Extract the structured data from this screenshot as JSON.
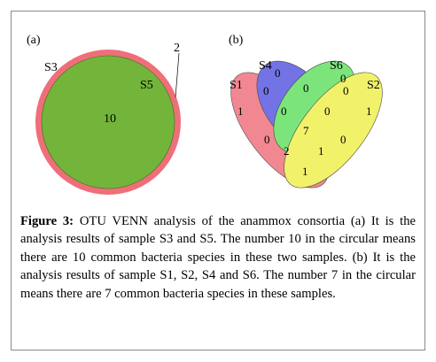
{
  "panel_a": {
    "label": "(a)",
    "sets": [
      {
        "name": "S3",
        "color": "#ee6f7a"
      },
      {
        "name": "S5",
        "color": "#72b53a"
      }
    ],
    "values": {
      "s3_only": "2",
      "s5_only": "",
      "shared": "10"
    }
  },
  "panel_b": {
    "label": "(b)",
    "sets": [
      {
        "name": "S1",
        "color": "#ee6f7a"
      },
      {
        "name": "S4",
        "color": "#5555e0"
      },
      {
        "name": "S6",
        "color": "#5fe05f"
      },
      {
        "name": "S2",
        "color": "#f0ee4a"
      }
    ],
    "regions": {
      "s1_only": "1",
      "s4_only": "0",
      "s6_only": "0",
      "s2_only": "1",
      "s1_s4": "0",
      "s4_s6": "0",
      "s6_s2": "0",
      "s1_s4_s6": "0",
      "s4_s6_s2": "0",
      "all": "7",
      "s1_s6": "0",
      "s4_s2": "0",
      "s1_s6_s2": "2",
      "s1_s4_s2": "1",
      "s1_s2": "1"
    }
  },
  "caption": {
    "label": "Figure 3:",
    "text": "OTU VENN analysis of the anammox consortia (a) It is the analysis results of sample S3 and S5. The number 10 in the circular means there are 10 common bacteria species in these two samples. (b) It is the analysis results of sample S1, S2, S4 and S6. The number 7 in the circular means there are 7 common bacteria species in these samples."
  }
}
